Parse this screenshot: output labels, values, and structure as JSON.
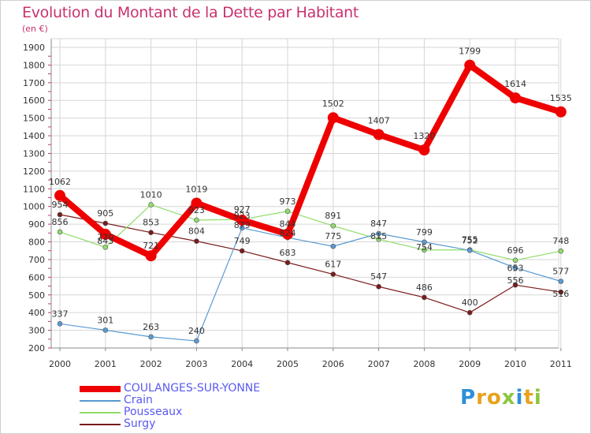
{
  "header": {
    "title": "Evolution du Montant de la Dette par Habitant",
    "subtitle": "(en €)"
  },
  "colors": {
    "title": "#c8326e",
    "grid": "#d6d6d6",
    "axis_label": "#333333",
    "legend_text": "#5a5af0"
  },
  "chart_data": {
    "type": "line",
    "x": [
      2000,
      2001,
      2002,
      2003,
      2004,
      2005,
      2006,
      2007,
      2008,
      2009,
      2010,
      2011
    ],
    "xlabel": "",
    "ylabel": "",
    "ylim": [
      200,
      1900
    ],
    "yticks": [
      200,
      300,
      400,
      500,
      600,
      700,
      800,
      900,
      1000,
      1100,
      1200,
      1300,
      1400,
      1500,
      1600,
      1700,
      1800,
      1900
    ],
    "grid": true,
    "legend_position": "bottom-left",
    "series": [
      {
        "name": "Surgy",
        "color": "#7a1a1a",
        "width": 1.2,
        "dot": 3,
        "values": [
          954,
          905,
          853,
          804,
          749,
          683,
          617,
          547,
          486,
          400,
          556,
          516
        ]
      },
      {
        "name": "Pousseaux",
        "color": "#8fdc6a",
        "width": 1.2,
        "dot": 3,
        "values": [
          856,
          770,
          1010,
          923,
          927,
          973,
          891,
          815,
          754,
          755,
          696,
          748
        ]
      },
      {
        "name": "Crain",
        "color": "#5a9ad2",
        "width": 1.2,
        "dot": 3,
        "values": [
          337,
          301,
          263,
          240,
          879,
          824,
          775,
          847,
          799,
          752,
          653,
          577
        ]
      },
      {
        "name": "COULANGES-SUR-YONNE",
        "color": "#ee0000",
        "width": 8,
        "dot": 7,
        "values": [
          1062,
          843,
          721,
          1019,
          923,
          844,
          1502,
          1407,
          1320,
          1799,
          1614,
          1535
        ]
      }
    ],
    "data_labels": [
      {
        "x": 2000,
        "y": 1062,
        "text": "1062",
        "dy": -14
      },
      {
        "x": 2000,
        "y": 954,
        "text": "954",
        "dy": -9
      },
      {
        "x": 2000,
        "y": 856,
        "text": "856",
        "dy": -9
      },
      {
        "x": 2000,
        "y": 337,
        "text": "337",
        "dy": -9
      },
      {
        "x": 2001,
        "y": 905,
        "text": "905",
        "dy": -9
      },
      {
        "x": 2001,
        "y": 843,
        "text": "843",
        "dy": 12
      },
      {
        "x": 2001,
        "y": 770,
        "text": "770",
        "dy": -9
      },
      {
        "x": 2001,
        "y": 301,
        "text": "301",
        "dy": -9
      },
      {
        "x": 2002,
        "y": 1010,
        "text": "1010",
        "dy": -9
      },
      {
        "x": 2002,
        "y": 853,
        "text": "853",
        "dy": -9
      },
      {
        "x": 2002,
        "y": 721,
        "text": "721",
        "dy": -9
      },
      {
        "x": 2002,
        "y": 263,
        "text": "263",
        "dy": -9
      },
      {
        "x": 2003,
        "y": 1019,
        "text": "1019",
        "dy": -14
      },
      {
        "x": 2003,
        "y": 923,
        "text": "923",
        "dy": -9
      },
      {
        "x": 2003,
        "y": 804,
        "text": "804",
        "dy": -9
      },
      {
        "x": 2003,
        "y": 240,
        "text": "240",
        "dy": -9
      },
      {
        "x": 2004,
        "y": 927,
        "text": "927",
        "dy": -9
      },
      {
        "x": 2004,
        "y": 923,
        "text": "923",
        "dy": -2
      },
      {
        "x": 2004,
        "y": 879,
        "text": "879",
        "dy": 0
      },
      {
        "x": 2004,
        "y": 749,
        "text": "749",
        "dy": -9
      },
      {
        "x": 2005,
        "y": 973,
        "text": "973",
        "dy": -9
      },
      {
        "x": 2005,
        "y": 844,
        "text": "844",
        "dy": -9
      },
      {
        "x": 2005,
        "y": 824,
        "text": "824",
        "dy": -2
      },
      {
        "x": 2005,
        "y": 683,
        "text": "683",
        "dy": -9
      },
      {
        "x": 2006,
        "y": 1502,
        "text": "1502",
        "dy": -14
      },
      {
        "x": 2006,
        "y": 891,
        "text": "891",
        "dy": -9
      },
      {
        "x": 2006,
        "y": 775,
        "text": "775",
        "dy": -9
      },
      {
        "x": 2006,
        "y": 617,
        "text": "617",
        "dy": -9
      },
      {
        "x": 2007,
        "y": 1407,
        "text": "1407",
        "dy": -14
      },
      {
        "x": 2007,
        "y": 847,
        "text": "847",
        "dy": -9
      },
      {
        "x": 2007,
        "y": 815,
        "text": "815",
        "dy": 0
      },
      {
        "x": 2007,
        "y": 547,
        "text": "547",
        "dy": -9
      },
      {
        "x": 2008,
        "y": 1320,
        "text": "1320",
        "dy": -14
      },
      {
        "x": 2008,
        "y": 799,
        "text": "799",
        "dy": -9
      },
      {
        "x": 2008,
        "y": 754,
        "text": "754",
        "dy": 0
      },
      {
        "x": 2008,
        "y": 486,
        "text": "486",
        "dy": -9
      },
      {
        "x": 2009,
        "y": 1799,
        "text": "1799",
        "dy": -14
      },
      {
        "x": 2009,
        "y": 755,
        "text": "755",
        "dy": -9
      },
      {
        "x": 2009,
        "y": 752,
        "text": "752",
        "dy": -9
      },
      {
        "x": 2009,
        "y": 400,
        "text": "400",
        "dy": -9
      },
      {
        "x": 2010,
        "y": 1614,
        "text": "1614",
        "dy": -14
      },
      {
        "x": 2010,
        "y": 696,
        "text": "696",
        "dy": -9
      },
      {
        "x": 2010,
        "y": 653,
        "text": "653",
        "dy": 4
      },
      {
        "x": 2010,
        "y": 556,
        "text": "556",
        "dy": -2
      },
      {
        "x": 2011,
        "y": 1535,
        "text": "1535",
        "dy": -14
      },
      {
        "x": 2011,
        "y": 748,
        "text": "748",
        "dy": -9
      },
      {
        "x": 2011,
        "y": 577,
        "text": "577",
        "dy": -9
      },
      {
        "x": 2011,
        "y": 516,
        "text": "516",
        "dy": 6
      }
    ]
  },
  "legend": {
    "items": [
      {
        "label": "COULANGES-SUR-YONNE",
        "color": "#ee0000",
        "thickness": 8
      },
      {
        "label": "Crain",
        "color": "#5a9ad2",
        "thickness": 2
      },
      {
        "label": "Pousseaux",
        "color": "#8fdc6a",
        "thickness": 2
      },
      {
        "label": "Surgy",
        "color": "#7a1a1a",
        "thickness": 2
      }
    ]
  },
  "logo": {
    "letters": [
      {
        "ch": "P",
        "color": "#2d8fd8"
      },
      {
        "ch": "r",
        "color": "#e8a21c"
      },
      {
        "ch": "o",
        "color": "#e8a21c"
      },
      {
        "ch": "x",
        "color": "#8cc63f"
      },
      {
        "ch": "i",
        "color": "#2d8fd8"
      },
      {
        "ch": "t",
        "color": "#e8a21c"
      },
      {
        "ch": "i",
        "color": "#8cc63f"
      }
    ]
  }
}
